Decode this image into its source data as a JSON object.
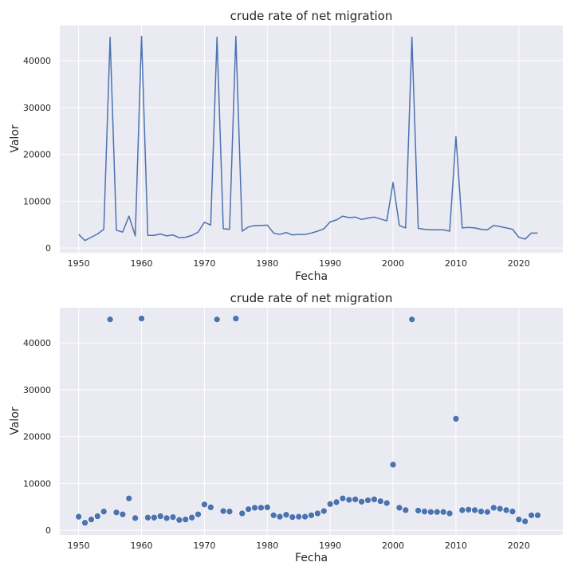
{
  "chart_data": [
    {
      "type": "line",
      "title": "crude rate of net migration",
      "xlabel": "Fecha",
      "ylabel": "Valor",
      "xlim": [
        1947,
        2027
      ],
      "ylim": [
        -1000,
        47500
      ],
      "xticks": [
        1950,
        1960,
        1970,
        1980,
        1990,
        2000,
        2010,
        2020
      ],
      "yticks": [
        0,
        10000,
        20000,
        30000,
        40000
      ],
      "grid": true,
      "color": "#4c72b0",
      "x": [
        1950,
        1951,
        1952,
        1953,
        1954,
        1955,
        1956,
        1957,
        1958,
        1959,
        1960,
        1961,
        1962,
        1963,
        1964,
        1965,
        1966,
        1967,
        1968,
        1969,
        1970,
        1971,
        1972,
        1973,
        1974,
        1975,
        1976,
        1977,
        1978,
        1979,
        1980,
        1981,
        1982,
        1983,
        1984,
        1985,
        1986,
        1987,
        1988,
        1989,
        1990,
        1991,
        1992,
        1993,
        1994,
        1995,
        1996,
        1997,
        1998,
        1999,
        2000,
        2001,
        2002,
        2003,
        2004,
        2005,
        2006,
        2007,
        2008,
        2009,
        2010,
        2011,
        2012,
        2013,
        2014,
        2015,
        2016,
        2017,
        2018,
        2019,
        2020,
        2021,
        2022,
        2023
      ],
      "y": [
        2900,
        1600,
        2300,
        3000,
        4000,
        45000,
        3800,
        3400,
        6800,
        2600,
        45200,
        2700,
        2700,
        3000,
        2600,
        2800,
        2200,
        2300,
        2700,
        3400,
        5500,
        4900,
        45000,
        4100,
        4000,
        45200,
        3600,
        4500,
        4800,
        4800,
        4900,
        3200,
        2900,
        3300,
        2800,
        2900,
        2900,
        3200,
        3600,
        4100,
        5600,
        6000,
        6800,
        6500,
        6600,
        6100,
        6400,
        6600,
        6200,
        5800,
        14000,
        4800,
        4300,
        45000,
        4200,
        4000,
        3900,
        3900,
        3900,
        3600,
        23800,
        4300,
        4400,
        4300,
        4000,
        3900,
        4800,
        4600,
        4300,
        4000,
        2300,
        1900,
        3200,
        3200
      ]
    },
    {
      "type": "scatter",
      "title": "crude rate of net migration",
      "xlabel": "Fecha",
      "ylabel": "Valor",
      "xlim": [
        1947,
        2027
      ],
      "ylim": [
        -1000,
        47500
      ],
      "xticks": [
        1950,
        1960,
        1970,
        1980,
        1990,
        2000,
        2010,
        2020
      ],
      "yticks": [
        0,
        10000,
        20000,
        30000,
        40000
      ],
      "grid": true,
      "color": "#4c72b0",
      "x": [
        1950,
        1951,
        1952,
        1953,
        1954,
        1955,
        1956,
        1957,
        1958,
        1959,
        1960,
        1961,
        1962,
        1963,
        1964,
        1965,
        1966,
        1967,
        1968,
        1969,
        1970,
        1971,
        1972,
        1973,
        1974,
        1975,
        1976,
        1977,
        1978,
        1979,
        1980,
        1981,
        1982,
        1983,
        1984,
        1985,
        1986,
        1987,
        1988,
        1989,
        1990,
        1991,
        1992,
        1993,
        1994,
        1995,
        1996,
        1997,
        1998,
        1999,
        2000,
        2001,
        2002,
        2003,
        2004,
        2005,
        2006,
        2007,
        2008,
        2009,
        2010,
        2011,
        2012,
        2013,
        2014,
        2015,
        2016,
        2017,
        2018,
        2019,
        2020,
        2021,
        2022,
        2023
      ],
      "y": [
        2900,
        1600,
        2300,
        3000,
        4000,
        45000,
        3800,
        3400,
        6800,
        2600,
        45200,
        2700,
        2700,
        3000,
        2600,
        2800,
        2200,
        2300,
        2700,
        3400,
        5500,
        4900,
        45000,
        4100,
        4000,
        45200,
        3600,
        4500,
        4800,
        4800,
        4900,
        3200,
        2900,
        3300,
        2800,
        2900,
        2900,
        3200,
        3600,
        4100,
        5600,
        6000,
        6800,
        6500,
        6600,
        6100,
        6400,
        6600,
        6200,
        5800,
        14000,
        4800,
        4300,
        45000,
        4200,
        4000,
        3900,
        3900,
        3900,
        3600,
        23800,
        4300,
        4400,
        4300,
        4000,
        3900,
        4800,
        4600,
        4300,
        4000,
        2300,
        1900,
        3200,
        3200
      ]
    }
  ]
}
